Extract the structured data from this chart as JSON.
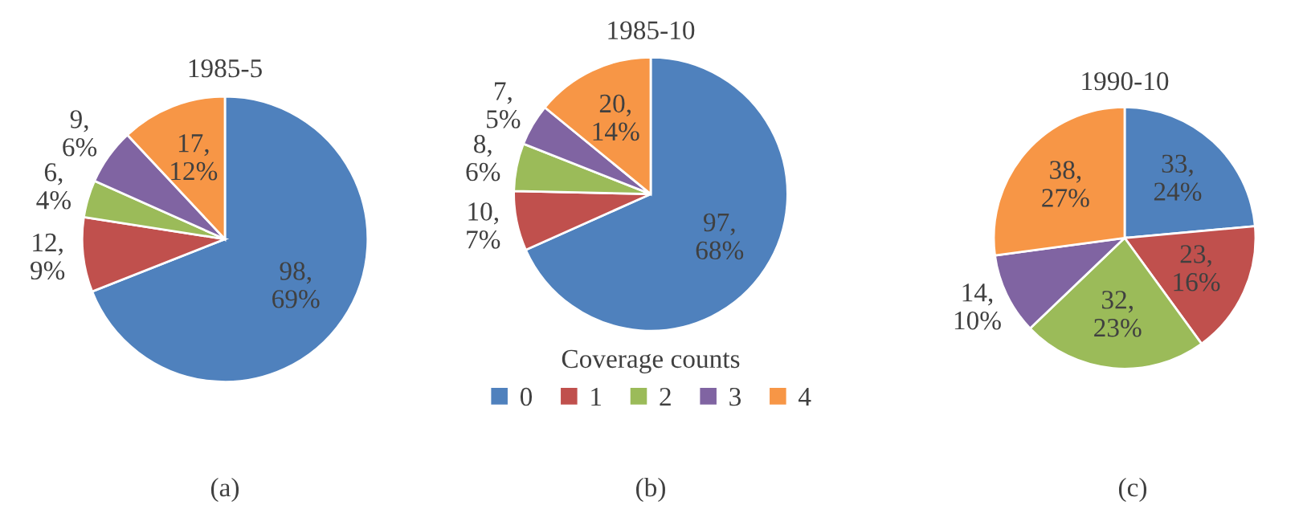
{
  "chart_data": [
    {
      "type": "pie",
      "title": "1985-5",
      "categories": [
        null,
        null,
        null,
        null,
        null
      ],
      "values": [
        98,
        12,
        6,
        9,
        17
      ],
      "colors": [
        "#4f81bd",
        "#c0504d",
        "#9bbb59",
        "#8064a2",
        "#f79646"
      ],
      "value_labels": [
        "98,\n69%",
        "12,\n9%",
        "6,\n4%",
        "9,\n6%",
        "17,\n12%"
      ],
      "legend": false,
      "annotations": [
        "(a)"
      ]
    },
    {
      "type": "pie",
      "title": "1985-10",
      "categories": [
        "0",
        "1",
        "2",
        "3",
        "4"
      ],
      "values": [
        97,
        10,
        8,
        7,
        20
      ],
      "colors": [
        "#4f81bd",
        "#c0504d",
        "#9bbb59",
        "#8064a2",
        "#f79646"
      ],
      "value_labels": [
        "97,\n68%",
        "10,\n7%",
        "8,\n6%",
        "7,\n5%",
        "20,\n14%"
      ],
      "legend": "bottom",
      "legend_title": "Coverage counts",
      "annotations": [
        "(b)"
      ]
    },
    {
      "type": "pie",
      "title": "1990-10",
      "categories": [
        null,
        null,
        null,
        null,
        null
      ],
      "values": [
        33,
        23,
        32,
        14,
        38
      ],
      "colors": [
        "#4f81bd",
        "#c0504d",
        "#9bbb59",
        "#8064a2",
        "#f79646"
      ],
      "value_labels": [
        "33,\n24%",
        "23,\n16%",
        "32,\n23%",
        "14,\n10%",
        "38,\n27%"
      ],
      "legend": false,
      "annotations": [
        "(c)"
      ]
    }
  ]
}
